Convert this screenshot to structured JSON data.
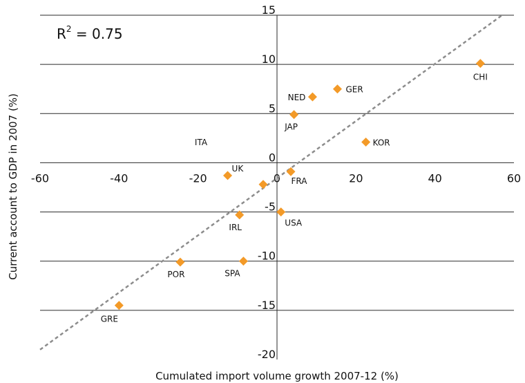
{
  "chart_data": {
    "type": "scatter",
    "xlabel": "Cumulated import volume growth 2007-12 (%)",
    "ylabel": "Current account to GDP in 2007 (%)",
    "xlim": [
      -60,
      60
    ],
    "ylim": [
      -20,
      15
    ],
    "xticks": [
      "-60",
      "-40",
      "-20",
      "0",
      "20",
      "40",
      "60"
    ],
    "yticks": [
      "15",
      "10",
      "5",
      "0",
      "-5",
      "-10",
      "-15",
      "-20"
    ],
    "grid": "horizontal",
    "annotation": {
      "r2_prefix": "R",
      "r2_sup": "2",
      "r2_value": " = 0.75"
    },
    "marker_color": "#f39a28",
    "trendline_color": "#8c8c8c",
    "trendline": {
      "x": [
        -60,
        57
      ],
      "y": [
        -19.0,
        15.0
      ]
    },
    "points": [
      {
        "label": "CHI",
        "x": 51.5,
        "y": 10.1
      },
      {
        "label": "GER",
        "x": 15.3,
        "y": 7.5
      },
      {
        "label": "NED",
        "x": 9.0,
        "y": 6.7
      },
      {
        "label": "JAP",
        "x": 4.3,
        "y": 4.9
      },
      {
        "label": "KOR",
        "x": 22.5,
        "y": 2.1
      },
      {
        "label": "ITA",
        "x": null,
        "y": null
      },
      {
        "label": "UK",
        "x": -12.5,
        "y": -1.3
      },
      {
        "label": "FRA",
        "x": 3.5,
        "y": -0.9
      },
      {
        "label": "",
        "x": -3.5,
        "y": -2.2
      },
      {
        "label": "USA",
        "x": 1.0,
        "y": -5.0
      },
      {
        "label": "IRL",
        "x": -9.5,
        "y": -5.3
      },
      {
        "label": "POR",
        "x": -24.5,
        "y": -10.1
      },
      {
        "label": "SPA",
        "x": -8.5,
        "y": -10.0
      },
      {
        "label": "GRE",
        "x": -40.0,
        "y": -14.5
      }
    ]
  }
}
